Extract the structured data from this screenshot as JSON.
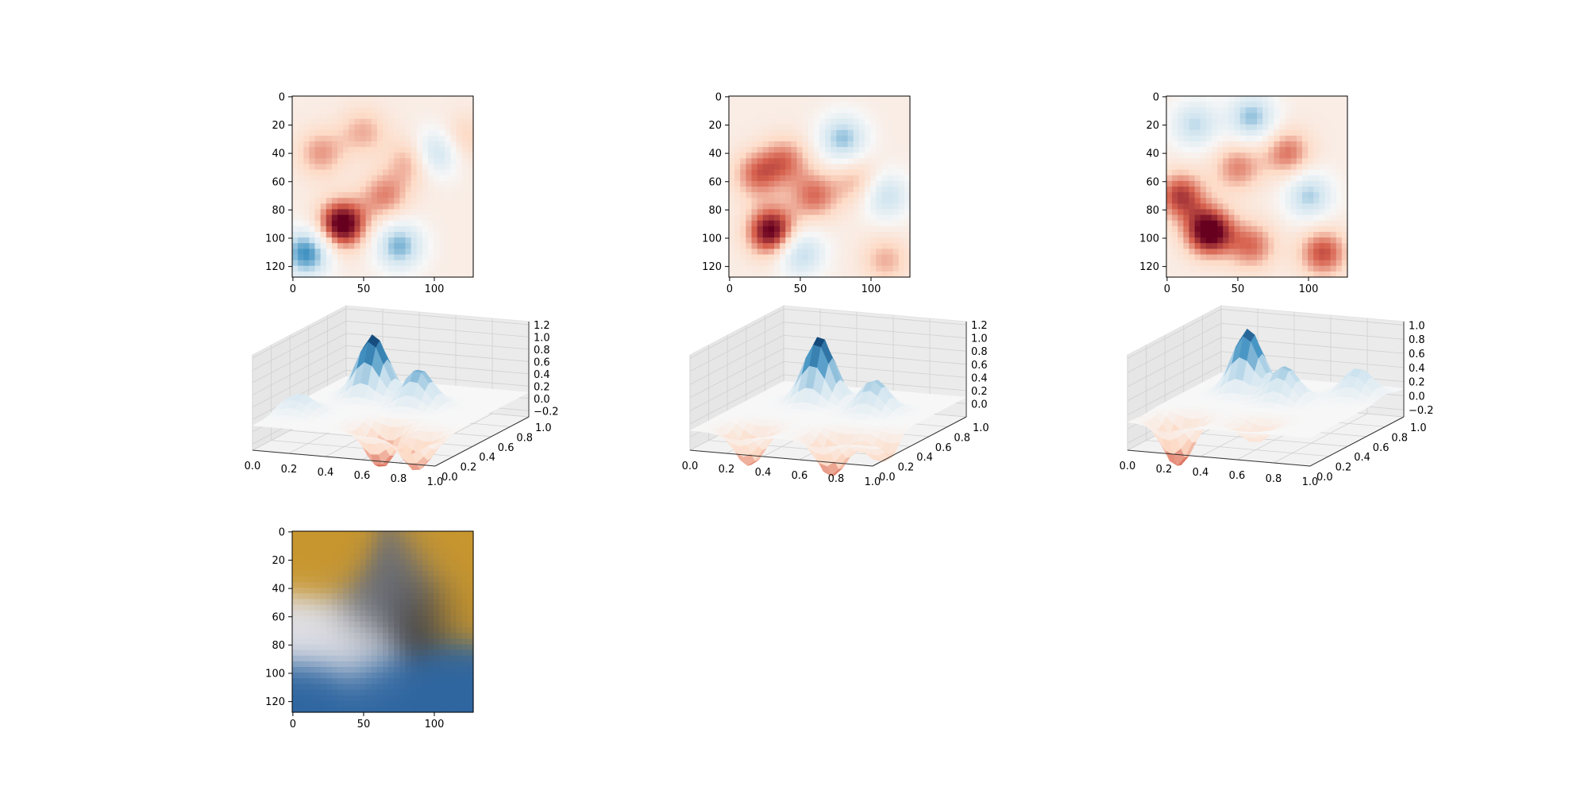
{
  "colors": {
    "cmap_neg": "#053061",
    "cmap_low": "#4393c3",
    "cmap_lowmid": "#d1e5f0",
    "cmap_mid": "#f7f7f7",
    "cmap_highmid": "#fddbc7",
    "cmap_high": "#d6604d",
    "cmap_pos": "#67001f",
    "pane": "#f2f2f2",
    "grid": "#d0d0d0",
    "axis": "#000000"
  },
  "chart_data": [
    {
      "type": "heatmap",
      "panel": "map-1",
      "colormap": "RdBu",
      "x_ticks": [
        "0",
        "50",
        "100"
      ],
      "y_ticks": [
        "0",
        "20",
        "40",
        "60",
        "80",
        "100",
        "120"
      ],
      "xlim": [
        0,
        127
      ],
      "ylim": [
        127,
        0
      ],
      "blobs": [
        {
          "x": 35,
          "y": 90,
          "v": -0.9
        },
        {
          "x": 20,
          "y": 40,
          "v": -0.35
        },
        {
          "x": 50,
          "y": 25,
          "v": -0.3
        },
        {
          "x": 85,
          "y": 45,
          "v": -0.4
        },
        {
          "x": 65,
          "y": 70,
          "v": -0.4
        },
        {
          "x": 120,
          "y": 30,
          "v": -0.25
        },
        {
          "x": 75,
          "y": 105,
          "v": 0.6
        },
        {
          "x": 100,
          "y": 40,
          "v": 0.55
        },
        {
          "x": 10,
          "y": 110,
          "v": 0.75
        }
      ]
    },
    {
      "type": "heatmap",
      "panel": "map-2",
      "colormap": "RdBu",
      "x_ticks": [
        "0",
        "50",
        "100"
      ],
      "y_ticks": [
        "0",
        "20",
        "40",
        "60",
        "80",
        "100",
        "120"
      ],
      "xlim": [
        0,
        127
      ],
      "ylim": [
        127,
        0
      ],
      "blobs": [
        {
          "x": 30,
          "y": 95,
          "v": -0.85
        },
        {
          "x": 20,
          "y": 55,
          "v": -0.45
        },
        {
          "x": 40,
          "y": 45,
          "v": -0.4
        },
        {
          "x": 60,
          "y": 70,
          "v": -0.45
        },
        {
          "x": 90,
          "y": 60,
          "v": -0.3
        },
        {
          "x": 110,
          "y": 115,
          "v": -0.3
        },
        {
          "x": 80,
          "y": 30,
          "v": 0.55
        },
        {
          "x": 50,
          "y": 110,
          "v": 0.5
        },
        {
          "x": 110,
          "y": 70,
          "v": 0.45
        }
      ]
    },
    {
      "type": "heatmap",
      "panel": "map-3",
      "colormap": "RdBu",
      "x_ticks": [
        "0",
        "50",
        "100"
      ],
      "y_ticks": [
        "0",
        "20",
        "40",
        "60",
        "80",
        "100",
        "120"
      ],
      "xlim": [
        0,
        127
      ],
      "ylim": [
        127,
        0
      ],
      "blobs": [
        {
          "x": 30,
          "y": 95,
          "v": -0.9
        },
        {
          "x": 10,
          "y": 70,
          "v": -0.6
        },
        {
          "x": 60,
          "y": 105,
          "v": -0.45
        },
        {
          "x": 110,
          "y": 110,
          "v": -0.55
        },
        {
          "x": 50,
          "y": 50,
          "v": -0.4
        },
        {
          "x": 85,
          "y": 40,
          "v": -0.45
        },
        {
          "x": 60,
          "y": 15,
          "v": 0.55
        },
        {
          "x": 100,
          "y": 70,
          "v": 0.5
        },
        {
          "x": 20,
          "y": 20,
          "v": 0.45
        }
      ]
    },
    {
      "type": "surface3d",
      "panel": "surface-1",
      "colormap": "RdBu",
      "x_ticks": [
        "0.0",
        "0.2",
        "0.4",
        "0.6",
        "0.8",
        "1.0"
      ],
      "y_ticks": [
        "0.0",
        "0.2",
        "0.4",
        "0.6",
        "0.8",
        "1.0"
      ],
      "z_ticks": [
        "−0.2",
        "0.0",
        "0.2",
        "0.4",
        "0.6",
        "0.8",
        "1.0",
        "1.2"
      ],
      "zlim": [
        -0.3,
        1.25
      ],
      "blobs": [
        {
          "x": 0.3,
          "y": 0.7,
          "v": 1.0
        },
        {
          "x": 0.6,
          "y": 0.6,
          "v": 0.6
        },
        {
          "x": 0.6,
          "y": 0.2,
          "v": -0.7
        },
        {
          "x": 0.85,
          "y": 0.1,
          "v": -0.6
        },
        {
          "x": 0.1,
          "y": 0.3,
          "v": 0.3
        }
      ]
    },
    {
      "type": "surface3d",
      "panel": "surface-2",
      "colormap": "RdBu",
      "x_ticks": [
        "0.0",
        "0.2",
        "0.4",
        "0.6",
        "0.8",
        "1.0"
      ],
      "y_ticks": [
        "0.0",
        "0.2",
        "0.4",
        "0.6",
        "0.8",
        "1.0"
      ],
      "z_ticks": [
        "0.0",
        "0.2",
        "0.4",
        "0.6",
        "0.8",
        "1.0",
        "1.2"
      ],
      "zlim": [
        -0.2,
        1.25
      ],
      "blobs": [
        {
          "x": 0.35,
          "y": 0.7,
          "v": 1.0
        },
        {
          "x": 0.7,
          "y": 0.6,
          "v": 0.5
        },
        {
          "x": 0.25,
          "y": 0.15,
          "v": -0.6
        },
        {
          "x": 0.7,
          "y": 0.15,
          "v": -0.65
        },
        {
          "x": 0.95,
          "y": 0.2,
          "v": -0.4
        }
      ]
    },
    {
      "type": "surface3d",
      "panel": "surface-3",
      "colormap": "RdBu",
      "x_ticks": [
        "0.0",
        "0.2",
        "0.4",
        "0.6",
        "0.8",
        "1.0"
      ],
      "y_ticks": [
        "0.0",
        "0.2",
        "0.4",
        "0.6",
        "0.8",
        "1.0"
      ],
      "z_ticks": [
        "−0.2",
        "0.0",
        "0.2",
        "0.4",
        "0.6",
        "0.8",
        "1.0"
      ],
      "zlim": [
        -0.3,
        1.05
      ],
      "blobs": [
        {
          "x": 0.3,
          "y": 0.7,
          "v": 0.9
        },
        {
          "x": 0.55,
          "y": 0.6,
          "v": 0.5
        },
        {
          "x": 0.85,
          "y": 0.8,
          "v": 0.4
        },
        {
          "x": 0.2,
          "y": 0.15,
          "v": -0.7
        },
        {
          "x": 0.6,
          "y": 0.2,
          "v": -0.3
        }
      ]
    },
    {
      "type": "image",
      "panel": "image-rgb",
      "x_ticks": [
        "0",
        "50",
        "100"
      ],
      "y_ticks": [
        "0",
        "20",
        "40",
        "60",
        "80",
        "100",
        "120"
      ],
      "xlim": [
        0,
        127
      ],
      "ylim": [
        127,
        0
      ],
      "palette": [
        "#c8962e",
        "#2f66a0",
        "#6b6f78",
        "#e0e0e6",
        "#3a3a40"
      ],
      "blobs": [
        {
          "x": 25,
          "y": 25,
          "c": 0
        },
        {
          "x": 110,
          "y": 20,
          "c": 0
        },
        {
          "x": 115,
          "y": 55,
          "c": 0
        },
        {
          "x": 60,
          "y": 110,
          "c": 1
        },
        {
          "x": 20,
          "y": 115,
          "c": 1
        },
        {
          "x": 110,
          "y": 100,
          "c": 1
        },
        {
          "x": 55,
          "y": 55,
          "c": 2
        },
        {
          "x": 80,
          "y": 40,
          "c": 2
        },
        {
          "x": 20,
          "y": 70,
          "c": 3
        },
        {
          "x": 45,
          "y": 80,
          "c": 3
        },
        {
          "x": 90,
          "y": 60,
          "c": 4
        }
      ]
    }
  ]
}
